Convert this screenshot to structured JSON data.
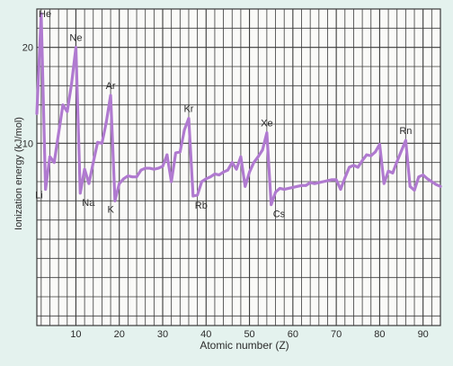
{
  "chart_data": {
    "type": "line",
    "title": "",
    "xlabel": "Atomic number (Z)",
    "ylabel": "Ionization energy (kJ/mol)",
    "xlim": [
      1,
      94
    ],
    "ylim": [
      -9,
      24
    ],
    "xticks": [
      10,
      20,
      30,
      40,
      50,
      60,
      70,
      80,
      90
    ],
    "yticks": [
      10,
      20
    ],
    "grid": true,
    "line_color": "#b07ad0",
    "series": [
      {
        "name": "",
        "x": [
          1,
          2,
          3,
          4,
          5,
          6,
          7,
          8,
          9,
          10,
          11,
          12,
          13,
          14,
          15,
          16,
          17,
          18,
          19,
          20,
          21,
          22,
          23,
          24,
          25,
          26,
          27,
          28,
          29,
          30,
          31,
          32,
          33,
          34,
          35,
          36,
          37,
          38,
          39,
          40,
          41,
          42,
          43,
          44,
          45,
          46,
          47,
          48,
          49,
          50,
          51,
          52,
          53,
          54,
          55,
          56,
          57,
          58,
          59,
          60,
          61,
          62,
          63,
          64,
          65,
          66,
          67,
          68,
          69,
          70,
          71,
          72,
          73,
          74,
          75,
          76,
          77,
          78,
          79,
          80,
          81,
          82,
          83,
          84,
          85,
          86,
          87,
          88,
          89,
          90,
          91,
          92,
          93,
          94
        ],
        "values": [
          13.1,
          23.5,
          5.2,
          8.6,
          8.0,
          11.0,
          14.0,
          13.3,
          16.2,
          20.0,
          4.8,
          7.3,
          5.8,
          8.0,
          10.1,
          10.0,
          12.2,
          15.0,
          4.0,
          5.8,
          6.3,
          6.6,
          6.5,
          6.5,
          7.2,
          7.4,
          7.4,
          7.3,
          7.4,
          7.6,
          8.8,
          6.0,
          9.0,
          9.1,
          11.4,
          12.6,
          4.5,
          4.6,
          6.0,
          6.3,
          6.5,
          6.8,
          6.7,
          7.0,
          7.2,
          8.0,
          7.3,
          8.6,
          5.5,
          7.0,
          8.0,
          8.6,
          9.3,
          11.1,
          3.6,
          4.9,
          5.3,
          5.2,
          5.3,
          5.4,
          5.5,
          5.6,
          5.6,
          5.9,
          5.8,
          5.9,
          6.0,
          6.1,
          6.2,
          6.2,
          5.2,
          6.4,
          7.5,
          7.7,
          7.5,
          8.2,
          8.8,
          8.7,
          9.1,
          9.9,
          5.8,
          7.1,
          6.9,
          8.1,
          9.2,
          10.3,
          5.5,
          5.1,
          6.5,
          6.7,
          6.3,
          6.0,
          5.7,
          5.5
        ]
      }
    ],
    "annotations": [
      {
        "text": "He",
        "x": 2
      },
      {
        "text": "Li",
        "x": 3
      },
      {
        "text": "Ne",
        "x": 10
      },
      {
        "text": "Na",
        "x": 11
      },
      {
        "text": "Ar",
        "x": 18
      },
      {
        "text": "K",
        "x": 19
      },
      {
        "text": "Kr",
        "x": 36
      },
      {
        "text": "Rb",
        "x": 37
      },
      {
        "text": "Xe",
        "x": 54
      },
      {
        "text": "Cs",
        "x": 55
      },
      {
        "text": "Rn",
        "x": 86
      }
    ],
    "colors": {
      "background": "#e4f2ee",
      "plot_background": "#fafaf8",
      "grid": "#3a3a3a",
      "line": "#b07ad0"
    }
  }
}
